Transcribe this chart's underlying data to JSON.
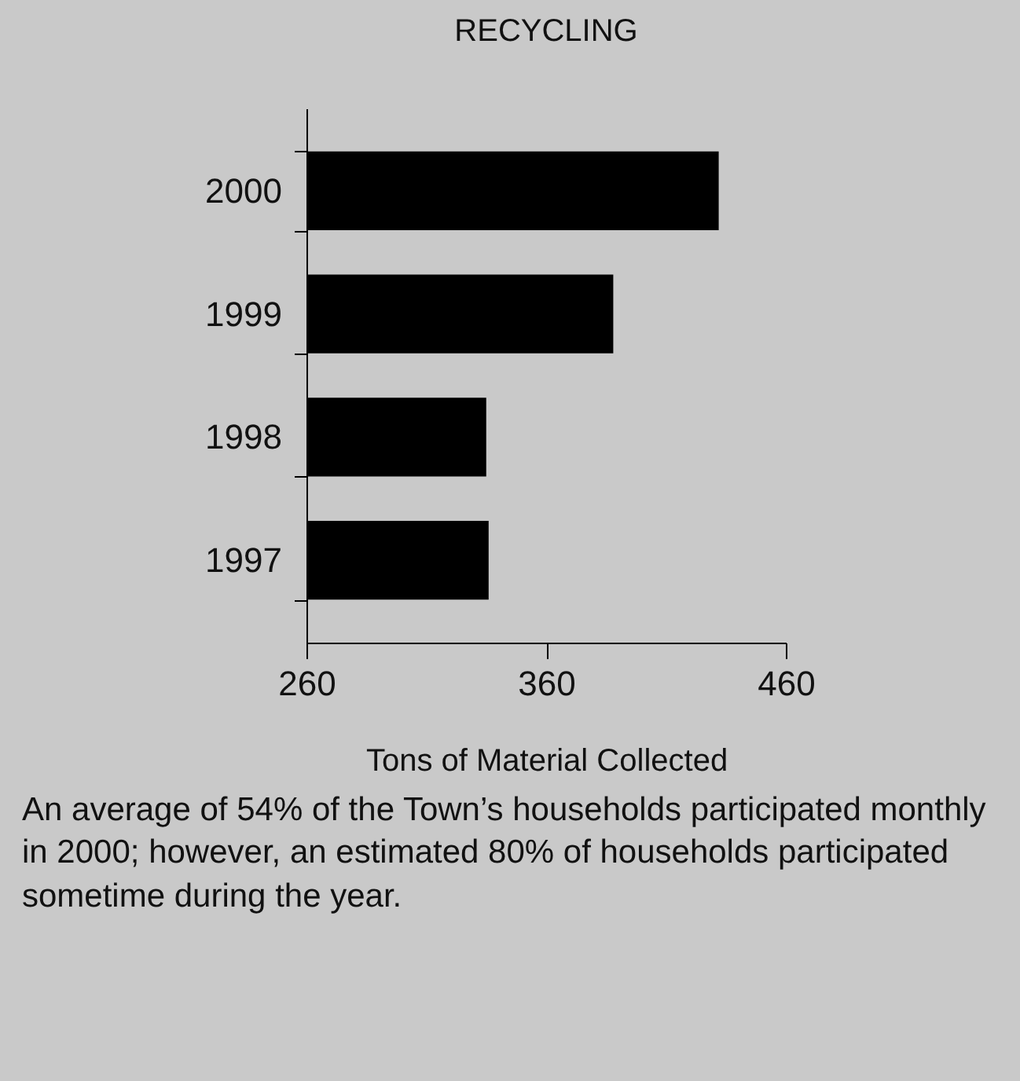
{
  "chart_data": {
    "type": "bar",
    "orientation": "horizontal",
    "title": "RECYCLING",
    "xlabel": "Tons of Material Collected",
    "categories": [
      "2000",
      "1999",
      "1998",
      "1997"
    ],
    "values": [
      432,
      388,
      335,
      336
    ],
    "color": "#000000",
    "xlim": [
      260,
      460
    ],
    "xticks": [
      260,
      360,
      460
    ],
    "grid": false,
    "annotations": [
      "An average of 54% of the Town’s households participated monthly in 2000; however, an estimated 80% of households participated sometime during the year."
    ]
  }
}
